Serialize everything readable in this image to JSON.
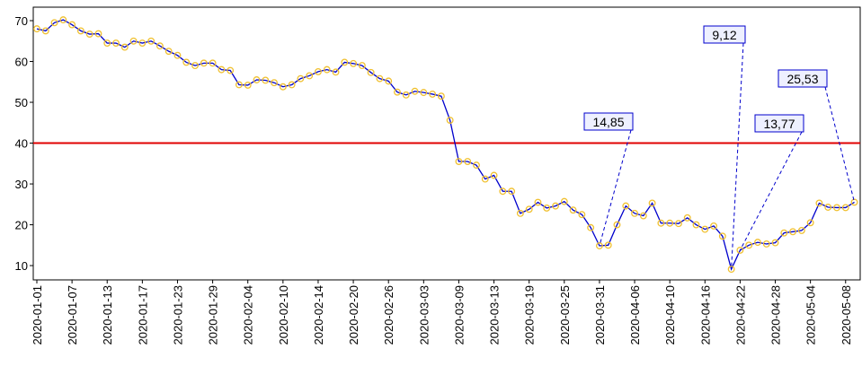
{
  "chart_data": {
    "type": "line",
    "categories": [
      "2020-01-01",
      null,
      null,
      null,
      "2020-01-07",
      null,
      null,
      null,
      "2020-01-13",
      null,
      null,
      null,
      "2020-01-17",
      null,
      null,
      null,
      "2020-01-23",
      null,
      null,
      null,
      "2020-01-29",
      null,
      null,
      null,
      "2020-02-04",
      null,
      null,
      null,
      "2020-02-10",
      null,
      null,
      null,
      "2020-02-14",
      null,
      null,
      null,
      "2020-02-20",
      null,
      null,
      null,
      "2020-02-26",
      null,
      null,
      null,
      "2020-03-03",
      null,
      null,
      null,
      "2020-03-09",
      null,
      null,
      null,
      "2020-03-13",
      null,
      null,
      null,
      "2020-03-19",
      null,
      null,
      null,
      "2020-03-25",
      null,
      null,
      null,
      "2020-03-31",
      null,
      null,
      null,
      "2020-04-06",
      null,
      null,
      null,
      "2020-04-10",
      null,
      null,
      null,
      "2020-04-16",
      null,
      null,
      null,
      "2020-04-22",
      null,
      null,
      null,
      "2020-04-28",
      null,
      null,
      null,
      "2020-05-04",
      null,
      null,
      null,
      "2020-05-08",
      null
    ],
    "values": [
      68,
      67.5,
      69.5,
      70.2,
      69,
      67.5,
      66.7,
      66.8,
      64.5,
      64.5,
      63.5,
      65,
      64.5,
      65,
      63.8,
      62.5,
      61.5,
      59.8,
      59,
      59.6,
      59.6,
      58,
      57.8,
      54.3,
      54.2,
      55.5,
      55.4,
      54.8,
      53.8,
      54.3,
      55.8,
      56.5,
      57.5,
      58,
      57.4,
      59.8,
      59.5,
      59,
      57.3,
      55.8,
      55.2,
      52.5,
      51.8,
      52.7,
      52.4,
      52,
      51.5,
      45.6,
      35.5,
      35.5,
      34.6,
      31.2,
      32.1,
      28.2,
      28.2,
      22.8,
      23.8,
      25.5,
      24.1,
      24.6,
      25.7,
      23.6,
      22.5,
      19.3,
      14.85,
      15,
      20,
      24.6,
      22.8,
      22.2,
      25.3,
      20.4,
      20.4,
      20.3,
      21.7,
      20,
      18.9,
      19.7,
      17.2,
      9.12,
      13.77,
      15,
      15.7,
      15.3,
      15.6,
      18,
      18.3,
      18.6,
      20.5,
      25.3,
      24.3,
      24.2,
      24.2,
      25.53
    ],
    "value_labels": [
      null,
      null,
      null,
      null,
      null,
      null,
      null,
      null,
      null,
      null,
      null,
      null,
      null,
      null,
      null,
      null,
      null,
      null,
      null,
      null,
      null,
      null,
      null,
      null,
      null,
      null,
      null,
      null,
      null,
      null,
      null,
      null,
      null,
      null,
      null,
      null,
      null,
      null,
      null,
      null,
      null,
      null,
      null,
      null,
      null,
      null,
      null,
      null,
      null,
      null,
      null,
      null,
      null,
      null,
      null,
      null,
      null,
      null,
      null,
      null,
      null,
      null,
      null,
      null,
      "14,85",
      null,
      null,
      null,
      null,
      null,
      null,
      null,
      null,
      null,
      null,
      null,
      null,
      null,
      null,
      "9,12",
      "13,77",
      null,
      null,
      null,
      null,
      null,
      null,
      null,
      null,
      null,
      null,
      null,
      null,
      "25,53"
    ],
    "color": "#0000cc",
    "marker_color": "#f0c030",
    "ylim": [
      6.5,
      73.3
    ],
    "yticks": [
      10,
      20,
      30,
      40,
      50,
      60,
      70
    ],
    "hline": 40,
    "hline_color": "#e00000"
  }
}
